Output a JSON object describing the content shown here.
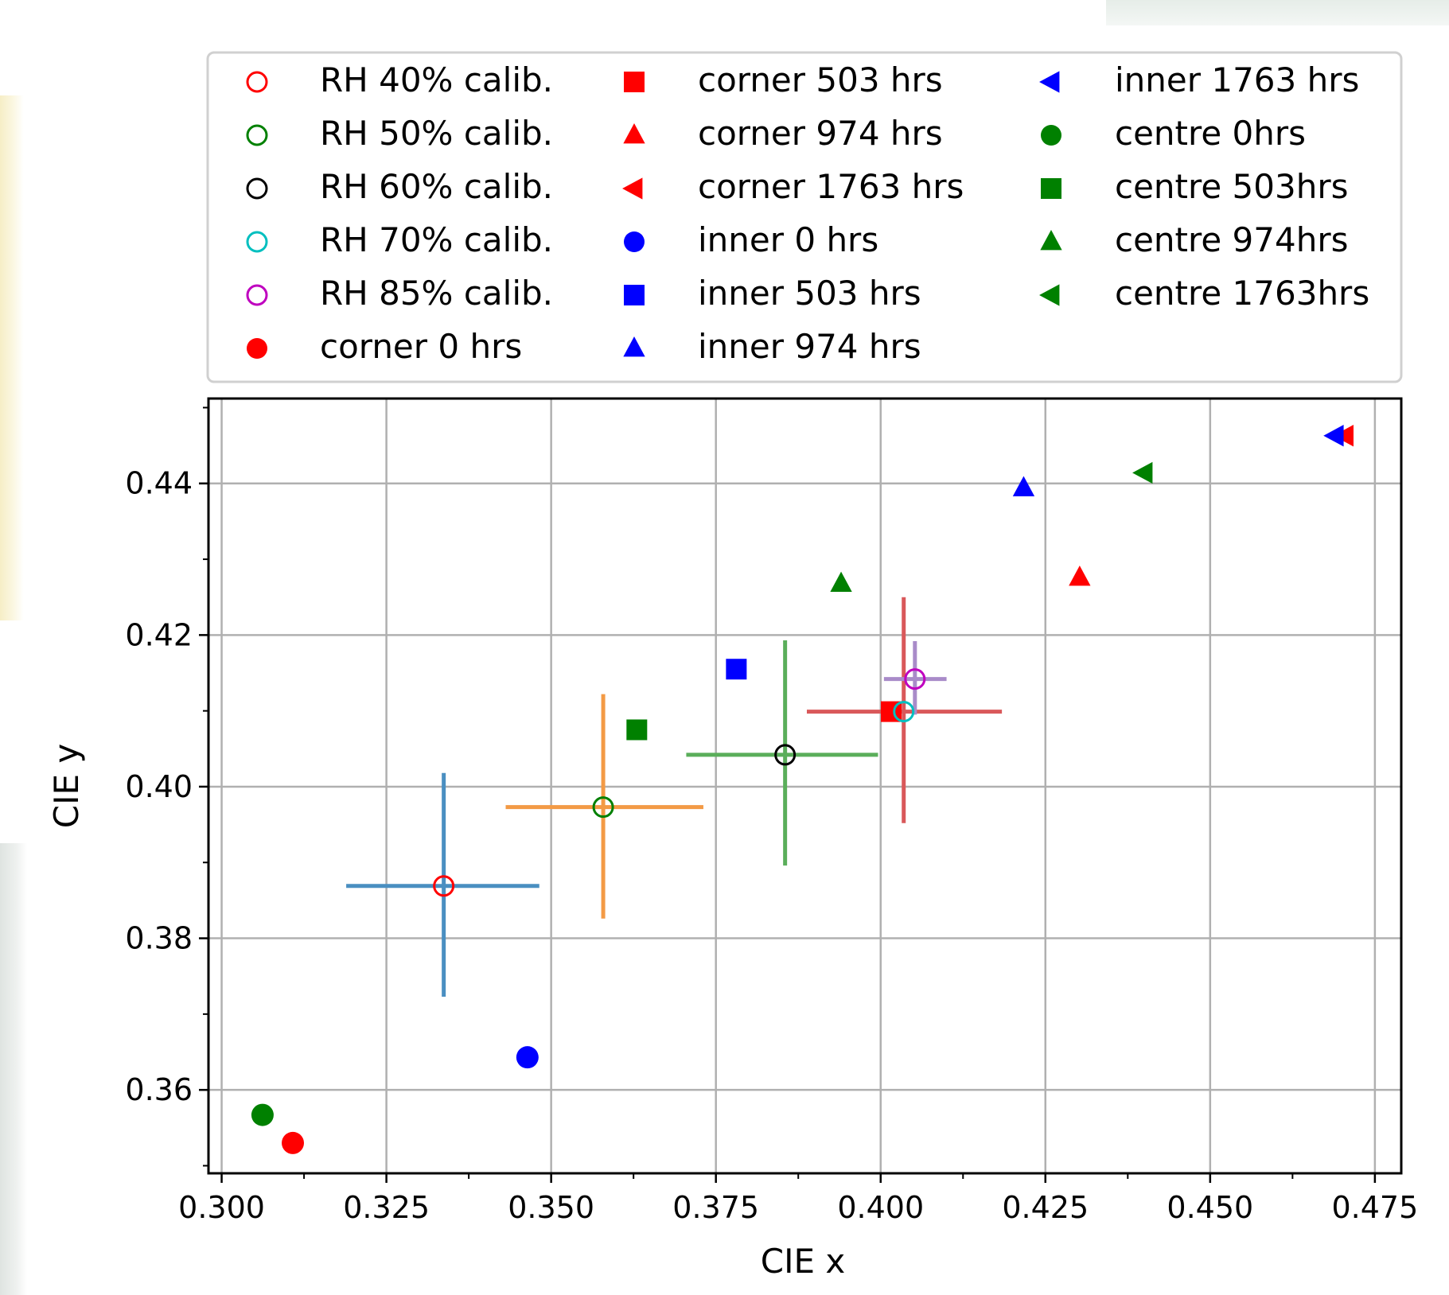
{
  "chart_data": {
    "type": "scatter",
    "xlabel": "CIE x",
    "ylabel": "CIE y",
    "xlim": [
      0.298,
      0.479
    ],
    "ylim": [
      0.349,
      0.4512
    ],
    "xticks": [
      "0.300",
      "0.325",
      "0.350",
      "0.375",
      "0.400",
      "0.425",
      "0.450",
      "0.475"
    ],
    "yticks": [
      "0.36",
      "0.38",
      "0.40",
      "0.42",
      "0.44"
    ],
    "grid": true,
    "legend_placement": "above plot",
    "legend_columns": 3,
    "series": [
      {
        "name": "RH 40% calib.",
        "marker": "circle-open",
        "color": "#ff0000",
        "x": [
          0.3337
        ],
        "y": [
          0.3869
        ],
        "xerr": [
          [
            0.3189,
            0.3482
          ]
        ],
        "yerr": [
          [
            0.3723,
            0.4018
          ]
        ],
        "errcolor": "#4a8fc1"
      },
      {
        "name": "RH 50% calib.",
        "marker": "circle-open",
        "color": "#008000",
        "x": [
          0.3579
        ],
        "y": [
          0.3973
        ],
        "xerr": [
          [
            0.3431,
            0.3731
          ]
        ],
        "yerr": [
          [
            0.3826,
            0.4122
          ]
        ],
        "errcolor": "#f39a45"
      },
      {
        "name": "RH 60% calib.",
        "marker": "circle-open",
        "color": "#000000",
        "x": [
          0.3855
        ],
        "y": [
          0.4042
        ],
        "xerr": [
          [
            0.3705,
            0.3996
          ]
        ],
        "yerr": [
          [
            0.3896,
            0.4193
          ]
        ],
        "errcolor": "#5aae5a"
      },
      {
        "name": "RH 70% calib.",
        "marker": "circle-open",
        "color": "#00bfbf",
        "x": [
          0.4035
        ],
        "y": [
          0.4099
        ],
        "xerr": [
          [
            0.3888,
            0.4184
          ]
        ],
        "yerr": [
          [
            0.3952,
            0.425
          ]
        ],
        "errcolor": "#d9585a"
      },
      {
        "name": "RH 85% calib.",
        "marker": "circle-open",
        "color": "#bf00bf",
        "x": [
          0.4052
        ],
        "y": [
          0.4142
        ],
        "xerr": [
          [
            0.4005,
            0.41
          ]
        ],
        "yerr": [
          [
            0.4095,
            0.4192
          ]
        ],
        "errcolor": "#a98bc9"
      },
      {
        "name": "corner 0 hrs",
        "marker": "circle",
        "color": "#ff0000",
        "x": [
          0.3108
        ],
        "y": [
          0.353
        ]
      },
      {
        "name": "corner 503 hrs",
        "marker": "square",
        "color": "#ff0000",
        "x": [
          0.4016
        ],
        "y": [
          0.4099
        ]
      },
      {
        "name": "corner 974 hrs",
        "marker": "triangle-up",
        "color": "#ff0000",
        "x": [
          0.4302
        ],
        "y": [
          0.4276
        ]
      },
      {
        "name": "corner 1763 hrs",
        "marker": "triangle-left",
        "color": "#ff0000",
        "x": [
          0.4705
        ],
        "y": [
          0.4463
        ]
      },
      {
        "name": "inner 0 hrs",
        "marker": "circle",
        "color": "#0000ff",
        "x": [
          0.3464
        ],
        "y": [
          0.3643
        ]
      },
      {
        "name": "inner 503 hrs",
        "marker": "square",
        "color": "#0000ff",
        "x": [
          0.3781
        ],
        "y": [
          0.4155
        ]
      },
      {
        "name": "inner 974 hrs",
        "marker": "triangle-up",
        "color": "#0000ff",
        "x": [
          0.4217
        ],
        "y": [
          0.4394
        ]
      },
      {
        "name": "inner 1763 hrs",
        "marker": "triangle-left",
        "color": "#0000ff",
        "x": [
          0.469
        ],
        "y": [
          0.4463
        ]
      },
      {
        "name": "centre 0hrs",
        "marker": "circle",
        "color": "#008000",
        "x": [
          0.3062
        ],
        "y": [
          0.3567
        ]
      },
      {
        "name": "centre 503hrs",
        "marker": "square",
        "color": "#008000",
        "x": [
          0.363
        ],
        "y": [
          0.4075
        ]
      },
      {
        "name": "centre 974hrs",
        "marker": "triangle-up",
        "color": "#008000",
        "x": [
          0.394
        ],
        "y": [
          0.4268
        ]
      },
      {
        "name": "centre 1763hrs",
        "marker": "triangle-left",
        "color": "#008000",
        "x": [
          0.44
        ],
        "y": [
          0.4414
        ]
      }
    ]
  }
}
